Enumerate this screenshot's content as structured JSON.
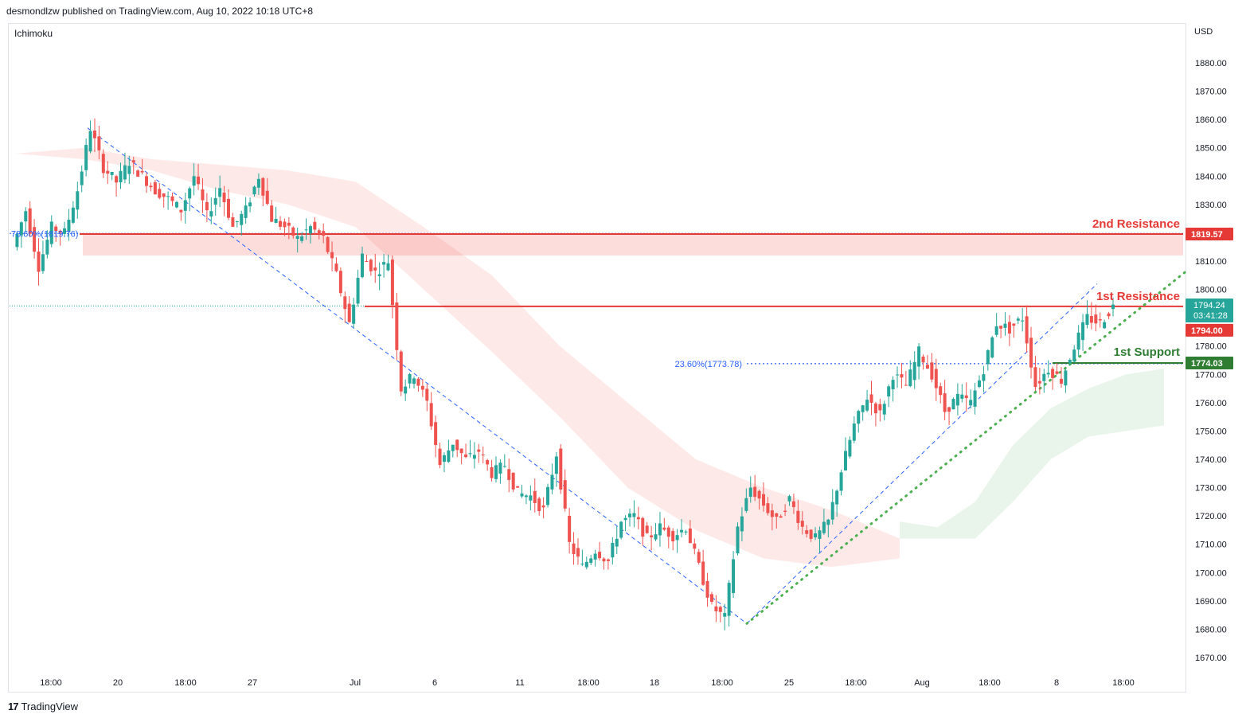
{
  "header": {
    "text": "desmondlzw published on TradingView.com, Aug 10, 2022 10:18 UTC+8"
  },
  "indicator": {
    "label": "Ichimoku"
  },
  "axis": {
    "currency": "USD"
  },
  "footer": {
    "brand": "TradingView"
  },
  "colors": {
    "up": "#26a69a",
    "down": "#ef5350",
    "resistance": "#e53935",
    "support": "#2e7d32",
    "fib": "#2962ff",
    "trend": "#4caf50"
  },
  "chart_data": {
    "type": "candlestick",
    "ylim": [
      1665,
      1890
    ],
    "y_ticks": [
      1670,
      1680,
      1690,
      1700,
      1710,
      1720,
      1730,
      1740,
      1750,
      1760,
      1770,
      1780,
      1790,
      1800,
      1810,
      1820,
      1830,
      1840,
      1850,
      1860,
      1870,
      1880
    ],
    "x_ticks": [
      "18:00",
      "20",
      "18:00",
      "27",
      "Jul",
      "6",
      "11",
      "18:00",
      "18",
      "18:00",
      "25",
      "18:00",
      "Aug",
      "18:00",
      "8",
      "18:00"
    ],
    "price_path": [
      1815,
      1828,
      1808,
      1822,
      1820,
      1835,
      1857,
      1843,
      1838,
      1845,
      1840,
      1835,
      1832,
      1828,
      1840,
      1826,
      1836,
      1822,
      1828,
      1840,
      1825,
      1822,
      1818,
      1822,
      1818,
      1805,
      1788,
      1812,
      1806,
      1810,
      1765,
      1770,
      1760,
      1738,
      1746,
      1740,
      1743,
      1735,
      1738,
      1728,
      1727,
      1722,
      1742,
      1710,
      1702,
      1708,
      1704,
      1718,
      1720,
      1712,
      1716,
      1713,
      1716,
      1702,
      1688,
      1684,
      1716,
      1730,
      1724,
      1718,
      1726,
      1716,
      1712,
      1718,
      1736,
      1752,
      1762,
      1756,
      1770,
      1766,
      1778,
      1770,
      1757,
      1762,
      1760,
      1772,
      1788,
      1786,
      1790,
      1766,
      1772,
      1768,
      1780,
      1790,
      1788,
      1794
    ],
    "cloud": {
      "red": [
        [
          1848,
          1848
        ],
        [
          1850,
          1846
        ],
        [
          1846,
          1842
        ],
        [
          1844,
          1835
        ],
        [
          1842,
          1830
        ],
        [
          1838,
          1822
        ],
        [
          1822,
          1800
        ],
        [
          1805,
          1778
        ],
        [
          1780,
          1755
        ],
        [
          1760,
          1730
        ],
        [
          1740,
          1715
        ],
        [
          1730,
          1705
        ],
        [
          1722,
          1702
        ],
        [
          1712,
          1705
        ]
      ],
      "green": [
        [
          1718,
          1712
        ],
        [
          1716,
          1712
        ],
        [
          1725,
          1712
        ],
        [
          1745,
          1725
        ],
        [
          1758,
          1740
        ],
        [
          1765,
          1748
        ],
        [
          1770,
          1750
        ],
        [
          1772,
          1752
        ]
      ]
    },
    "levels": [
      {
        "name": "2nd Resistance",
        "value": 1819.57,
        "label": "1819.57"
      },
      {
        "name": "1st Resistance",
        "value": 1794.0,
        "label": "1794.00"
      },
      {
        "name": "1st Support",
        "value": 1774.03,
        "label": "1774.03"
      }
    ],
    "fib_labels": [
      {
        "text": "78.60%(1819.76)",
        "value": 1819.76
      },
      {
        "text": "23.60%(1773.78)",
        "value": 1773.78
      }
    ],
    "current_price": {
      "value": 1794.24,
      "label": "1794.24",
      "countdown": "03:41:28"
    },
    "trendlines": [
      {
        "kind": "dashed-down",
        "from_price": 1857,
        "to_price": 1682
      },
      {
        "kind": "dashed-up",
        "from_price": 1682,
        "to_price": 1802
      },
      {
        "kind": "dotted-up",
        "from_price": 1682,
        "to_price": 1806
      }
    ]
  }
}
